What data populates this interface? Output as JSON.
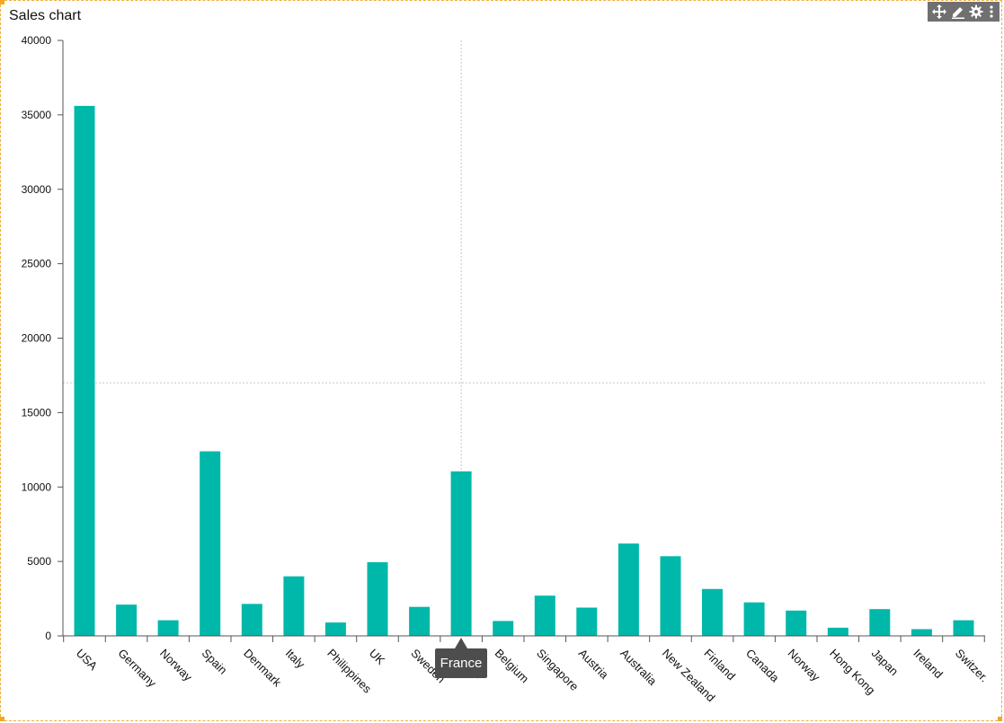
{
  "widget": {
    "title": "Sales chart",
    "toolbar": {
      "move_icon": "move-icon",
      "edit_icon": "pencil-icon",
      "settings_icon": "gear-icon",
      "menu_icon": "kebab-menu-icon"
    },
    "accent": "#f5a623"
  },
  "tooltip": {
    "label": "France"
  },
  "chart_data": {
    "type": "bar",
    "title": "Sales chart",
    "xlabel": "",
    "ylabel": "",
    "ylim": [
      0,
      40000
    ],
    "yticks": [
      0,
      5000,
      10000,
      15000,
      20000,
      25000,
      30000,
      35000,
      40000
    ],
    "grid": false,
    "bar_color": "#00b8a9",
    "crosshair": {
      "category": "France",
      "y": 17000
    },
    "categories": [
      "USA",
      "Germany",
      "Norway",
      "Spain",
      "Denmark",
      "Italy",
      "Philippines",
      "UK",
      "Sweden",
      "France",
      "Belgium",
      "Singapore",
      "Austria",
      "Australia",
      "New Zealand",
      "Finland",
      "Canada",
      "Norway",
      "Hong Kong",
      "Japan",
      "Ireland",
      "Switzerland"
    ],
    "category_labels": [
      "USA",
      "Germany",
      "Norway",
      "Spain",
      "Denmark",
      "Italy",
      "Philippines",
      "UK",
      "Sweden",
      "France",
      "Belgium",
      "Singapore",
      "Austria",
      "Australia",
      "New Zealand",
      "Finland",
      "Canada",
      "Norway",
      "Hong Kong",
      "Japan",
      "Ireland",
      "Switzer."
    ],
    "values": [
      35600,
      2100,
      1050,
      12400,
      2150,
      4000,
      900,
      4950,
      1950,
      11050,
      1000,
      2700,
      1900,
      6200,
      5350,
      3150,
      2250,
      1700,
      550,
      1800,
      450,
      1050
    ]
  }
}
